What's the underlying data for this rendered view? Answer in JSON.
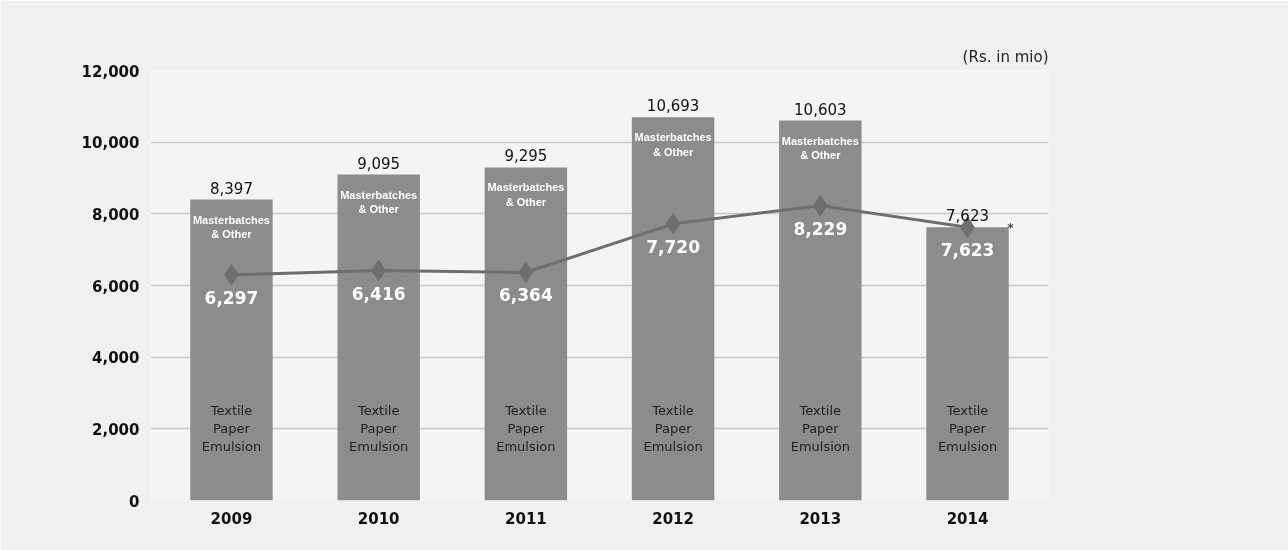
{
  "chart_data": {
    "type": "bar",
    "categories": [
      "2009",
      "2010",
      "2011",
      "2012",
      "2013",
      "2014"
    ],
    "series": [
      {
        "color": "#8c8c8c",
        "values": [
          8397,
          9095,
          9295,
          10693,
          10603,
          7623
        ],
        "value_labels": [
          "8,397",
          "9,095",
          "9,295",
          "10,693",
          "10,603",
          "7,623"
        ]
      },
      {
        "type": "line",
        "color": "#6e6e6e",
        "values": [
          6297,
          6416,
          6364,
          7720,
          8229,
          7623
        ],
        "value_labels": [
          "6,297",
          "6,416",
          "6,364",
          "7,720",
          "8,229",
          "7,623"
        ]
      }
    ],
    "ylim": [
      0,
      12000
    ],
    "yticks": [
      {
        "value": 0,
        "label": "0"
      },
      {
        "value": 2000,
        "label": "2,000"
      },
      {
        "value": 4000,
        "label": "4,000"
      },
      {
        "value": 6000,
        "label": "6,000"
      },
      {
        "value": 8000,
        "label": "8,000"
      },
      {
        "value": 10000,
        "label": "10,000"
      },
      {
        "value": 12000,
        "label": "12,000"
      }
    ],
    "grid": "y",
    "marker": "diamond",
    "line_style": "solid",
    "annotations": [
      "(Rs. in mio)",
      "Masterbatches\n& Other",
      "Masterbatches\n& Other",
      "Masterbatches\n& Other",
      "Masterbatches\n& Other",
      "Masterbatches\n& Other",
      "Textile\nPaper\nEmulsion",
      "Textile\nPaper\nEmulsion",
      "Textile\nPaper\nEmulsion",
      "Textile\nPaper\nEmulsion",
      "Textile\nPaper\nEmulsion",
      "Textile\nPaper\nEmulsion",
      "*"
    ]
  }
}
